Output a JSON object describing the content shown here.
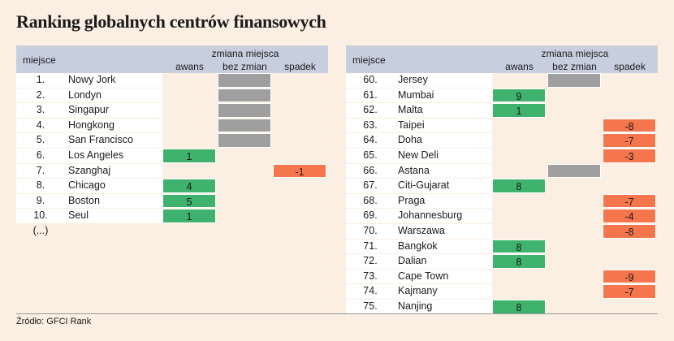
{
  "title": "Ranking globalnych centrów finansowych",
  "headers": {
    "miejsce": "miejsce",
    "zmiana": "zmiana miejsca",
    "awans": "awans",
    "bez_zmian": "bez zmian",
    "spadek": "spadek"
  },
  "ellipsis": "(...)",
  "source": "Źródło: GFCI Rank",
  "colors": {
    "awans": "#3fb36d",
    "bez_zmian": "#9f9f9f",
    "spadek": "#f5764d",
    "header": "#c7cfdf",
    "background": "#fbeee2"
  },
  "chart_data": {
    "type": "table",
    "columns": [
      "miejsce",
      "awans",
      "bez zmian",
      "spadek"
    ],
    "left": [
      {
        "rank": "1.",
        "city": "Nowy Jork",
        "change": "same",
        "value": ""
      },
      {
        "rank": "2.",
        "city": "Londyn",
        "change": "same",
        "value": ""
      },
      {
        "rank": "3.",
        "city": "Singapur",
        "change": "same",
        "value": ""
      },
      {
        "rank": "4.",
        "city": "Hongkong",
        "change": "same",
        "value": ""
      },
      {
        "rank": "5.",
        "city": "San Francisco",
        "change": "same",
        "value": ""
      },
      {
        "rank": "6.",
        "city": "Los Angeles",
        "change": "up",
        "value": "1"
      },
      {
        "rank": "7.",
        "city": "Szanghaj",
        "change": "down",
        "value": "-1"
      },
      {
        "rank": "8.",
        "city": "Chicago",
        "change": "up",
        "value": "4"
      },
      {
        "rank": "9.",
        "city": "Boston",
        "change": "up",
        "value": "5"
      },
      {
        "rank": "10.",
        "city": "Seul",
        "change": "up",
        "value": "1"
      }
    ],
    "right": [
      {
        "rank": "60.",
        "city": "Jersey",
        "change": "same",
        "value": ""
      },
      {
        "rank": "61.",
        "city": "Mumbai",
        "change": "up",
        "value": "9"
      },
      {
        "rank": "62.",
        "city": "Malta",
        "change": "up",
        "value": "1"
      },
      {
        "rank": "63.",
        "city": "Taipei",
        "change": "down",
        "value": "-8"
      },
      {
        "rank": "64.",
        "city": "Doha",
        "change": "down",
        "value": "-7"
      },
      {
        "rank": "65.",
        "city": "New Deli",
        "change": "down",
        "value": "-3"
      },
      {
        "rank": "66.",
        "city": "Astana",
        "change": "same",
        "value": ""
      },
      {
        "rank": "67.",
        "city": "Citi-Gujarat",
        "change": "up",
        "value": "8"
      },
      {
        "rank": "68.",
        "city": "Praga",
        "change": "down",
        "value": "-7"
      },
      {
        "rank": "69.",
        "city": "Johannesburg",
        "change": "down",
        "value": "-4"
      },
      {
        "rank": "70.",
        "city": "Warszawa",
        "change": "down",
        "value": "-8"
      },
      {
        "rank": "71.",
        "city": "Bangkok",
        "change": "up",
        "value": "8"
      },
      {
        "rank": "72.",
        "city": "Dalian",
        "change": "up",
        "value": "8"
      },
      {
        "rank": "73.",
        "city": "Cape Town",
        "change": "down",
        "value": "-9"
      },
      {
        "rank": "74.",
        "city": "Kajmany",
        "change": "down",
        "value": "-7"
      },
      {
        "rank": "75.",
        "city": "Nanjing",
        "change": "up",
        "value": "8"
      }
    ]
  }
}
